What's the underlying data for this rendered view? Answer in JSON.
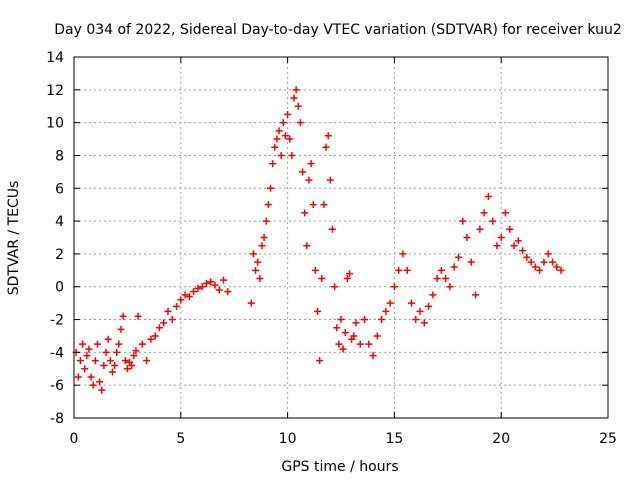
{
  "chart_data": {
    "type": "scatter",
    "title": "Day 034 of 2022, Sidereal Day-to-day VTEC variation (SDTVAR) for receiver kuu2",
    "xlabel": "GPS time / hours",
    "ylabel": "SDTVAR / TECUs",
    "xlim": [
      0,
      25
    ],
    "ylim": [
      -8,
      14
    ],
    "xticks": [
      "0",
      "5",
      "10",
      "15",
      "20",
      "25"
    ],
    "yticks": [
      "-8",
      "-6",
      "-4",
      "-2",
      "0",
      "2",
      "4",
      "6",
      "8",
      "10",
      "12",
      "14"
    ],
    "grid": true,
    "marker": "+",
    "color": "#ff0000",
    "series": [
      {
        "name": "SDTVAR",
        "x": [
          0.1,
          0.2,
          0.3,
          0.4,
          0.5,
          0.6,
          0.7,
          0.8,
          0.9,
          1.0,
          1.1,
          1.2,
          1.3,
          1.4,
          1.5,
          1.6,
          1.7,
          1.8,
          1.9,
          2.0,
          2.1,
          2.2,
          2.3,
          2.4,
          2.5,
          2.6,
          2.7,
          2.8,
          2.9,
          3.0,
          3.2,
          3.4,
          3.6,
          3.8,
          4.0,
          4.2,
          4.4,
          4.6,
          4.8,
          5.0,
          5.2,
          5.4,
          5.6,
          5.8,
          6.0,
          6.2,
          6.4,
          6.6,
          6.8,
          7.0,
          7.2,
          8.3,
          8.4,
          8.5,
          8.6,
          8.7,
          8.8,
          8.9,
          9.0,
          9.1,
          9.2,
          9.3,
          9.4,
          9.5,
          9.6,
          9.7,
          9.8,
          9.9,
          10.0,
          10.1,
          10.2,
          10.3,
          10.4,
          10.5,
          10.6,
          10.7,
          10.8,
          10.9,
          11.0,
          11.1,
          11.2,
          11.3,
          11.4,
          11.5,
          11.6,
          11.7,
          11.8,
          11.9,
          12.0,
          12.1,
          12.2,
          12.3,
          12.4,
          12.5,
          12.6,
          12.7,
          12.8,
          12.9,
          13.0,
          13.1,
          13.2,
          13.4,
          13.6,
          13.8,
          14.0,
          14.2,
          14.4,
          14.6,
          14.8,
          15.0,
          15.2,
          15.4,
          15.6,
          15.8,
          16.0,
          16.2,
          16.4,
          16.6,
          16.8,
          17.0,
          17.2,
          17.4,
          17.6,
          17.8,
          18.0,
          18.2,
          18.4,
          18.6,
          18.8,
          19.0,
          19.2,
          19.4,
          19.6,
          19.8,
          20.0,
          20.2,
          20.4,
          20.6,
          20.8,
          21.0,
          21.2,
          21.4,
          21.6,
          21.8,
          22.0,
          22.2,
          22.4,
          22.6,
          22.8
        ],
        "y": [
          -4.0,
          -5.5,
          -4.5,
          -3.5,
          -5.0,
          -4.2,
          -3.8,
          -5.5,
          -6.0,
          -4.5,
          -3.5,
          -5.8,
          -6.3,
          -4.8,
          -4.0,
          -3.2,
          -4.5,
          -5.2,
          -4.8,
          -4.0,
          -3.5,
          -2.6,
          -1.8,
          -4.5,
          -5.0,
          -4.6,
          -4.8,
          -4.2,
          -3.9,
          -1.8,
          -3.5,
          -4.5,
          -3.2,
          -3.0,
          -2.5,
          -2.2,
          -1.5,
          -2.0,
          -1.2,
          -0.8,
          -0.5,
          -0.6,
          -0.3,
          -0.1,
          0.0,
          0.2,
          0.3,
          0.1,
          -0.2,
          0.4,
          -0.3,
          -1.0,
          2.0,
          1.0,
          1.5,
          0.5,
          2.5,
          3.0,
          4.0,
          5.0,
          6.0,
          7.5,
          8.5,
          9.0,
          9.5,
          8.0,
          10.0,
          9.2,
          10.5,
          9.0,
          8.0,
          11.5,
          12.0,
          11.0,
          10.0,
          7.0,
          4.5,
          2.5,
          6.5,
          7.5,
          5.0,
          1.0,
          -1.5,
          -4.5,
          0.5,
          5.0,
          8.5,
          9.2,
          6.5,
          3.5,
          0.0,
          -2.5,
          -3.5,
          -2.0,
          -3.8,
          -2.8,
          0.5,
          0.8,
          -3.2,
          -3.0,
          -2.2,
          -3.5,
          -2.0,
          -3.5,
          -4.2,
          -3.0,
          -2.0,
          -1.5,
          -1.0,
          0.0,
          1.0,
          2.0,
          1.0,
          -1.0,
          -2.0,
          -1.5,
          -2.2,
          -1.2,
          -0.5,
          0.5,
          1.0,
          0.5,
          0.0,
          1.2,
          1.8,
          4.0,
          3.0,
          1.5,
          -0.5,
          3.5,
          4.5,
          5.5,
          4.0,
          2.5,
          3.0,
          4.5,
          3.5,
          2.5,
          2.8,
          2.2,
          1.8,
          1.5,
          1.2,
          1.0,
          1.5,
          2.0,
          1.5,
          1.2,
          1.0
        ]
      }
    ]
  }
}
